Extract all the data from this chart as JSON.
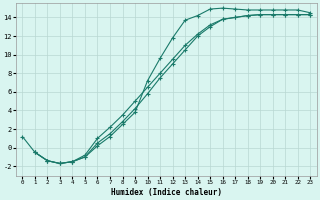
{
  "xlabel": "Humidex (Indice chaleur)",
  "bg_color": "#d9f5f0",
  "grid_color": "#b8d8d2",
  "line_color": "#1a7a6a",
  "xlim": [
    -0.5,
    23.5
  ],
  "ylim": [
    -3.0,
    15.5
  ],
  "xticks": [
    0,
    1,
    2,
    3,
    4,
    5,
    6,
    7,
    8,
    9,
    10,
    11,
    12,
    13,
    14,
    15,
    16,
    17,
    18,
    19,
    20,
    21,
    22,
    23
  ],
  "yticks": [
    -2,
    0,
    2,
    4,
    6,
    8,
    10,
    12,
    14
  ],
  "line1_x": [
    0,
    1,
    2,
    3,
    4,
    5,
    6,
    7,
    8,
    9,
    10,
    11,
    12,
    13,
    14,
    15,
    16,
    17,
    18,
    19,
    20,
    21,
    22,
    23
  ],
  "line1_y": [
    1.2,
    -0.5,
    -1.4,
    -1.7,
    -1.5,
    -1.0,
    0.2,
    1.2,
    2.5,
    3.8,
    7.2,
    9.6,
    11.8,
    13.7,
    14.2,
    14.9,
    15.0,
    14.9,
    14.8,
    14.8,
    14.8,
    14.8,
    14.8,
    14.5
  ],
  "line2_x": [
    1,
    2,
    3,
    4,
    5,
    6,
    7,
    8,
    9,
    10,
    11,
    12,
    13,
    14,
    15,
    16,
    17,
    18,
    19,
    20,
    21,
    22,
    23
  ],
  "line2_y": [
    -0.5,
    -1.4,
    -1.7,
    -1.5,
    -1.0,
    0.5,
    1.5,
    2.8,
    4.2,
    5.8,
    7.5,
    9.0,
    10.5,
    12.0,
    13.0,
    13.8,
    14.0,
    14.2,
    14.3,
    14.3,
    14.3,
    14.3,
    14.3
  ],
  "line3_x": [
    1,
    2,
    3,
    4,
    5,
    6,
    7,
    8,
    9,
    10,
    11,
    12,
    13,
    14,
    15,
    16,
    17,
    18,
    19,
    20,
    21,
    22,
    23
  ],
  "line3_y": [
    -0.5,
    -1.4,
    -1.7,
    -1.5,
    -0.8,
    1.0,
    2.2,
    3.5,
    5.0,
    6.5,
    8.0,
    9.5,
    11.0,
    12.2,
    13.2,
    13.8,
    14.0,
    14.2,
    14.3,
    14.3,
    14.3,
    14.3,
    14.3
  ]
}
